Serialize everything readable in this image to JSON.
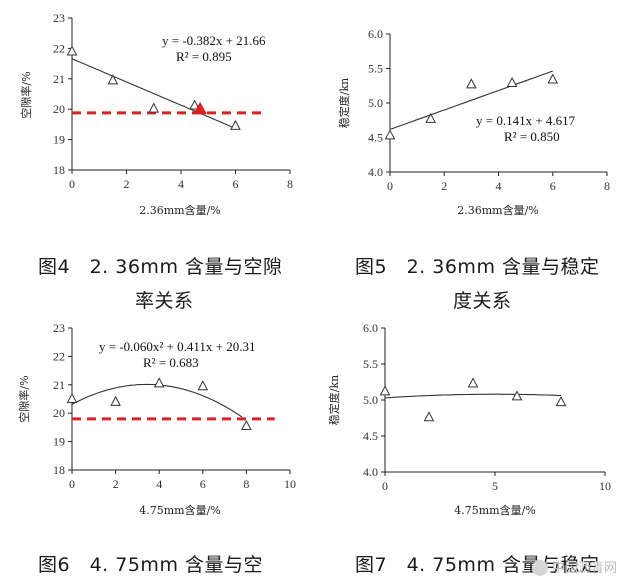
{
  "captions": {
    "fig4_line1": "图4　2. 36mm 含量与空隙",
    "fig4_line2": "率关系",
    "fig5_line1": "图5　2. 36mm 含量与稳定",
    "fig5_line2": "度关系",
    "fig6_line1": "图6　4. 75mm 含量与空",
    "fig7_line1": "图7　4. 75mm 含量与稳定"
  },
  "watermark": "中国沥青网",
  "colors": {
    "axis": "#222222",
    "trend": "#333333",
    "threshold": "#e02020",
    "marker_fill": "#e02020"
  },
  "chart_data": [
    {
      "id": "fig4",
      "type": "scatter",
      "xlabel": "2.36mm含量/%",
      "ylabel": "空隙率/%",
      "xlim": [
        0,
        8
      ],
      "ylim": [
        18,
        23
      ],
      "xticks": [
        0,
        2,
        4,
        6,
        8
      ],
      "yticks": [
        18,
        19,
        20,
        21,
        22,
        23
      ],
      "points": [
        [
          0,
          21.9
        ],
        [
          1.5,
          20.95
        ],
        [
          3,
          20.02
        ],
        [
          4.5,
          20.12
        ],
        [
          6,
          19.45
        ]
      ],
      "trend": {
        "kind": "linear",
        "coef": [
          -0.382,
          21.66
        ],
        "range": [
          0,
          6
        ]
      },
      "equation": "y = -0.382x + 21.66",
      "r2": "R² = 0.895",
      "threshold": {
        "y": 19.88,
        "range": [
          0,
          7
        ]
      },
      "marker": {
        "x": 4.7,
        "y": 19.98,
        "shape": "filled-triangle"
      }
    },
    {
      "id": "fig5",
      "type": "scatter",
      "xlabel": "2.36mm含量/%",
      "ylabel": "稳定度/kn",
      "xlim": [
        0,
        8
      ],
      "ylim": [
        4.0,
        6.0
      ],
      "xticks": [
        0,
        2,
        4,
        6,
        8
      ],
      "yticks": [
        4.0,
        4.5,
        5.0,
        5.5,
        6.0
      ],
      "points": [
        [
          0,
          4.53
        ],
        [
          1.5,
          4.77
        ],
        [
          3,
          5.27
        ],
        [
          4.5,
          5.29
        ],
        [
          6,
          5.34
        ]
      ],
      "trend": {
        "kind": "linear",
        "coef": [
          0.141,
          4.617
        ],
        "range": [
          0,
          6
        ]
      },
      "equation": "y = 0.141x + 4.617",
      "r2": "R² = 0.850"
    },
    {
      "id": "fig6",
      "type": "scatter",
      "xlabel": "4.75mm含量/%",
      "ylabel": "空隙率/%",
      "xlim": [
        0,
        10
      ],
      "ylim": [
        18,
        23
      ],
      "xticks": [
        0,
        2,
        4,
        6,
        8,
        10
      ],
      "yticks": [
        18,
        19,
        20,
        21,
        22,
        23
      ],
      "points": [
        [
          0,
          20.5
        ],
        [
          2,
          20.4
        ],
        [
          4,
          21.05
        ],
        [
          6,
          20.95
        ],
        [
          8,
          19.55
        ]
      ],
      "trend": {
        "kind": "quadratic",
        "coef": [
          -0.06,
          0.411,
          20.31
        ],
        "range": [
          0,
          7.8
        ]
      },
      "equation": "y = -0.060x² + 0.411x + 20.31",
      "r2": "R² = 0.683",
      "threshold": {
        "y": 19.8,
        "range": [
          0,
          9.3
        ]
      }
    },
    {
      "id": "fig7",
      "type": "scatter",
      "xlabel": "4.75mm含量/%",
      "ylabel": "稳定度/kn",
      "xlim": [
        0,
        10
      ],
      "ylim": [
        4.0,
        6.0
      ],
      "xticks": [
        0,
        5,
        10
      ],
      "yticks": [
        4.0,
        4.5,
        5.0,
        5.5,
        6.0
      ],
      "points": [
        [
          0,
          5.12
        ],
        [
          2,
          4.76
        ],
        [
          4,
          5.23
        ],
        [
          6,
          5.05
        ],
        [
          8,
          4.97
        ]
      ],
      "trend": {
        "kind": "quadratic",
        "coef": [
          -0.002,
          0.02,
          5.03
        ],
        "range": [
          0,
          8
        ]
      }
    }
  ]
}
